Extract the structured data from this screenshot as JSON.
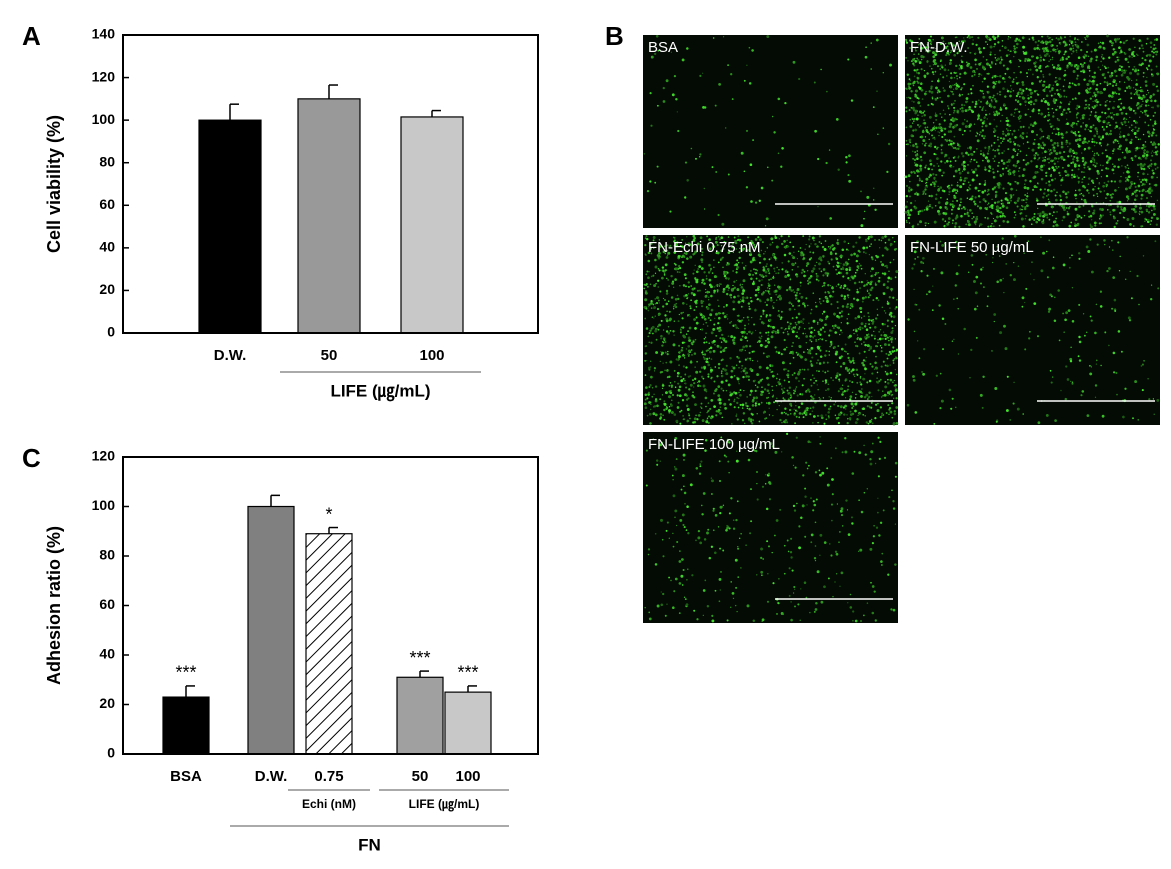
{
  "chart_data": [
    {
      "type": "bar",
      "panel_label": "A",
      "ylabel": "Cell viability (%)",
      "categories": [
        "D.W.",
        "50",
        "100"
      ],
      "values": [
        100,
        110,
        101.5
      ],
      "errors": [
        7.5,
        6.5,
        3
      ],
      "colors": [
        "#000000",
        "#999999",
        "#c8c8c8"
      ],
      "bar_styles": [
        "solid",
        "solid",
        "solid"
      ],
      "ylim": [
        0,
        140
      ],
      "yticks": [
        0,
        20,
        40,
        60,
        80,
        100,
        120,
        140
      ],
      "groups": [
        {
          "label": "LIFE (㎍/mL)",
          "from": 1,
          "to": 2
        }
      ]
    },
    {
      "type": "bar",
      "panel_label": "C",
      "ylabel": "Adhesion ratio (%)",
      "categories": [
        "BSA",
        "D.W.",
        "0.75",
        "50",
        "100"
      ],
      "values": [
        23,
        100,
        89,
        31,
        25
      ],
      "errors": [
        4.5,
        4.5,
        2.5,
        2.5,
        2.5
      ],
      "annotations": [
        "***",
        null,
        "*",
        "***",
        "***"
      ],
      "colors": [
        "#000000",
        "#808080",
        "#ffffff",
        "#a0a0a0",
        "#c8c8c8"
      ],
      "bar_styles": [
        "solid",
        "solid",
        "hatched",
        "solid",
        "solid"
      ],
      "ylim": [
        0,
        120
      ],
      "yticks": [
        0,
        20,
        40,
        60,
        80,
        100,
        120
      ],
      "groups": [
        {
          "label": "Echi (nM)",
          "from": 2,
          "to": 2
        },
        {
          "label": "LIFE (㎍/mL)",
          "from": 3,
          "to": 4
        },
        {
          "label": "FN",
          "from": 1,
          "to": 4
        }
      ]
    }
  ],
  "images": {
    "panel_label": "B",
    "labels": [
      "BSA",
      "FN-D.W.",
      "FN-Echi 0.75 nM",
      "FN-LIFE 50 µg/mL",
      "FN-LIFE 100 µg/mL"
    ]
  }
}
